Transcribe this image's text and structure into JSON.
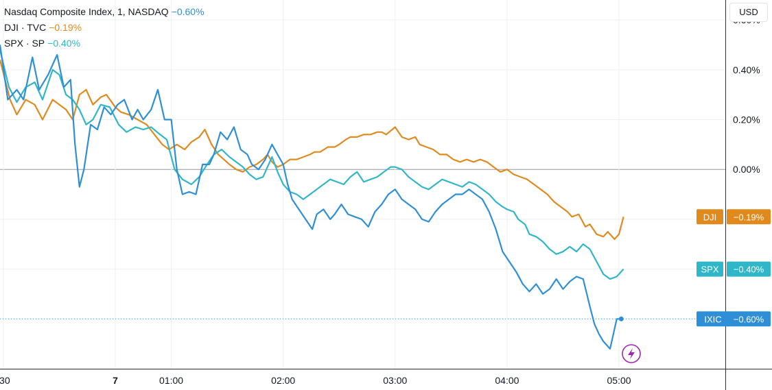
{
  "legend": [
    {
      "symbol": "Nasdaq Composite Index, 1, NASDAQ",
      "change": "−0.60%",
      "color": "#2e8fd6"
    },
    {
      "symbol": "DJI · TVC",
      "change": "−0.19%",
      "color": "#e08a1e"
    },
    {
      "symbol": "SPX · SP",
      "change": "−0.40%",
      "color": "#2fb6c9"
    }
  ],
  "currency": "USD",
  "chart_data": {
    "type": "line",
    "x_tick_labels": [
      ":30",
      "7",
      "01:00",
      "02:00",
      "03:00",
      "04:00",
      "05:00"
    ],
    "x_ticks_hours": [
      -1.5,
      -0.5,
      0,
      1,
      2,
      3,
      4
    ],
    "x_range_hours": [
      -1.53,
      4.95
    ],
    "y_tick_labels": [
      "0.60%",
      "0.40%",
      "0.20%",
      "0.00%"
    ],
    "y_ticks": [
      0.6,
      0.4,
      0.2,
      0.0
    ],
    "ylim": [
      -0.8,
      0.68
    ],
    "grid": true,
    "series": [
      {
        "name": "DJI",
        "tag": "DJI",
        "tag_value": "−0.19%",
        "last": -0.19,
        "color": "#e08a1e",
        "points": [
          [
            -1.53,
            0.44
          ],
          [
            -1.44,
            0.28
          ],
          [
            -1.38,
            0.22
          ],
          [
            -1.3,
            0.28
          ],
          [
            -1.22,
            0.26
          ],
          [
            -1.15,
            0.2
          ],
          [
            -1.06,
            0.28
          ],
          [
            -1.0,
            0.26
          ],
          [
            -0.94,
            0.24
          ],
          [
            -0.88,
            0.2
          ],
          [
            -0.82,
            0.3
          ],
          [
            -0.76,
            0.32
          ],
          [
            -0.7,
            0.26
          ],
          [
            -0.63,
            0.29
          ],
          [
            -0.58,
            0.3
          ],
          [
            -0.5,
            0.25
          ],
          [
            -0.45,
            0.23
          ],
          [
            -0.38,
            0.22
          ],
          [
            -0.3,
            0.2
          ],
          [
            -0.22,
            0.18
          ],
          [
            -0.15,
            0.14
          ],
          [
            -0.08,
            0.1
          ],
          [
            -0.02,
            0.08
          ],
          [
            0.05,
            0.1
          ],
          [
            0.12,
            0.08
          ],
          [
            0.18,
            0.11
          ],
          [
            0.25,
            0.13
          ],
          [
            0.3,
            0.16
          ],
          [
            0.36,
            0.1
          ],
          [
            0.42,
            0.06
          ],
          [
            0.47,
            0.04
          ],
          [
            0.52,
            0.02
          ],
          [
            0.58,
            0.0
          ],
          [
            0.64,
            -0.01
          ],
          [
            0.7,
            0.01
          ],
          [
            0.76,
            0.02
          ],
          [
            0.82,
            0.04
          ],
          [
            0.86,
            0.06
          ],
          [
            0.9,
            0.03
          ],
          [
            0.95,
            0.01
          ],
          [
            1.0,
            0.02
          ],
          [
            1.06,
            0.04
          ],
          [
            1.12,
            0.04
          ],
          [
            1.18,
            0.05
          ],
          [
            1.24,
            0.06
          ],
          [
            1.28,
            0.07
          ],
          [
            1.33,
            0.07
          ],
          [
            1.4,
            0.09
          ],
          [
            1.46,
            0.09
          ],
          [
            1.5,
            0.1
          ],
          [
            1.56,
            0.12
          ],
          [
            1.6,
            0.13
          ],
          [
            1.66,
            0.13
          ],
          [
            1.72,
            0.14
          ],
          [
            1.78,
            0.14
          ],
          [
            1.84,
            0.15
          ],
          [
            1.88,
            0.15
          ],
          [
            1.92,
            0.14
          ],
          [
            2.0,
            0.17
          ],
          [
            2.06,
            0.13
          ],
          [
            2.12,
            0.12
          ],
          [
            2.18,
            0.13
          ],
          [
            2.22,
            0.1
          ],
          [
            2.28,
            0.09
          ],
          [
            2.34,
            0.08
          ],
          [
            2.4,
            0.06
          ],
          [
            2.46,
            0.06
          ],
          [
            2.52,
            0.04
          ],
          [
            2.58,
            0.03
          ],
          [
            2.64,
            0.04
          ],
          [
            2.7,
            0.03
          ],
          [
            2.76,
            0.04
          ],
          [
            2.82,
            0.03
          ],
          [
            2.88,
            0.01
          ],
          [
            2.94,
            -0.01
          ],
          [
            3.0,
            0.0
          ],
          [
            3.06,
            -0.02
          ],
          [
            3.12,
            -0.03
          ],
          [
            3.18,
            -0.04
          ],
          [
            3.24,
            -0.06
          ],
          [
            3.3,
            -0.08
          ],
          [
            3.36,
            -0.1
          ],
          [
            3.42,
            -0.13
          ],
          [
            3.48,
            -0.15
          ],
          [
            3.54,
            -0.17
          ],
          [
            3.58,
            -0.19
          ],
          [
            3.64,
            -0.18
          ],
          [
            3.7,
            -0.23
          ],
          [
            3.74,
            -0.22
          ],
          [
            3.8,
            -0.26
          ],
          [
            3.86,
            -0.27
          ],
          [
            3.9,
            -0.25
          ],
          [
            3.96,
            -0.28
          ],
          [
            4.0,
            -0.26
          ],
          [
            4.04,
            -0.19
          ]
        ]
      },
      {
        "name": "SPX",
        "tag": "SPX",
        "tag_value": "−0.40%",
        "last": -0.4,
        "color": "#2fb6c9",
        "points": [
          [
            -1.53,
            0.48
          ],
          [
            -1.45,
            0.33
          ],
          [
            -1.38,
            0.27
          ],
          [
            -1.3,
            0.33
          ],
          [
            -1.22,
            0.35
          ],
          [
            -1.15,
            0.28
          ],
          [
            -1.06,
            0.4
          ],
          [
            -1.0,
            0.38
          ],
          [
            -0.94,
            0.3
          ],
          [
            -0.88,
            0.28
          ],
          [
            -0.82,
            0.24
          ],
          [
            -0.76,
            0.18
          ],
          [
            -0.7,
            0.2
          ],
          [
            -0.63,
            0.26
          ],
          [
            -0.55,
            0.25
          ],
          [
            -0.47,
            0.18
          ],
          [
            -0.4,
            0.15
          ],
          [
            -0.32,
            0.17
          ],
          [
            -0.25,
            0.16
          ],
          [
            -0.18,
            0.17
          ],
          [
            -0.1,
            0.14
          ],
          [
            -0.04,
            0.12
          ],
          [
            0.03,
            0.0
          ],
          [
            0.1,
            -0.04
          ],
          [
            0.18,
            -0.06
          ],
          [
            0.25,
            -0.03
          ],
          [
            0.32,
            0.02
          ],
          [
            0.38,
            0.06
          ],
          [
            0.45,
            0.08
          ],
          [
            0.52,
            0.05
          ],
          [
            0.58,
            0.03
          ],
          [
            0.64,
            0.01
          ],
          [
            0.7,
            -0.02
          ],
          [
            0.76,
            -0.04
          ],
          [
            0.82,
            -0.03
          ],
          [
            0.9,
            0.05
          ],
          [
            0.95,
            -0.01
          ],
          [
            1.0,
            -0.06
          ],
          [
            1.06,
            -0.09
          ],
          [
            1.12,
            -0.1
          ],
          [
            1.18,
            -0.12
          ],
          [
            1.24,
            -0.1
          ],
          [
            1.3,
            -0.08
          ],
          [
            1.36,
            -0.06
          ],
          [
            1.42,
            -0.04
          ],
          [
            1.48,
            -0.05
          ],
          [
            1.54,
            -0.06
          ],
          [
            1.6,
            -0.03
          ],
          [
            1.66,
            -0.01
          ],
          [
            1.72,
            -0.05
          ],
          [
            1.78,
            -0.04
          ],
          [
            1.84,
            -0.03
          ],
          [
            1.9,
            -0.01
          ],
          [
            1.96,
            0.01
          ],
          [
            2.0,
            0.01
          ],
          [
            2.06,
            0.0
          ],
          [
            2.12,
            -0.03
          ],
          [
            2.18,
            -0.05
          ],
          [
            2.24,
            -0.07
          ],
          [
            2.3,
            -0.08
          ],
          [
            2.36,
            -0.06
          ],
          [
            2.42,
            -0.04
          ],
          [
            2.48,
            -0.05
          ],
          [
            2.54,
            -0.06
          ],
          [
            2.6,
            -0.07
          ],
          [
            2.66,
            -0.05
          ],
          [
            2.72,
            -0.06
          ],
          [
            2.78,
            -0.08
          ],
          [
            2.84,
            -0.1
          ],
          [
            2.9,
            -0.13
          ],
          [
            2.96,
            -0.15
          ],
          [
            3.0,
            -0.16
          ],
          [
            3.06,
            -0.17
          ],
          [
            3.1,
            -0.2
          ],
          [
            3.16,
            -0.22
          ],
          [
            3.2,
            -0.26
          ],
          [
            3.26,
            -0.27
          ],
          [
            3.32,
            -0.29
          ],
          [
            3.38,
            -0.32
          ],
          [
            3.44,
            -0.34
          ],
          [
            3.5,
            -0.33
          ],
          [
            3.56,
            -0.31
          ],
          [
            3.62,
            -0.33
          ],
          [
            3.68,
            -0.3
          ],
          [
            3.74,
            -0.32
          ],
          [
            3.8,
            -0.37
          ],
          [
            3.86,
            -0.42
          ],
          [
            3.92,
            -0.44
          ],
          [
            3.98,
            -0.43
          ],
          [
            4.04,
            -0.4
          ]
        ]
      },
      {
        "name": "IXIC",
        "tag": "IXIC",
        "tag_value": "−0.60%",
        "last": -0.6,
        "color": "#2e8fd6",
        "points": [
          [
            -1.53,
            0.5
          ],
          [
            -1.46,
            0.28
          ],
          [
            -1.38,
            0.32
          ],
          [
            -1.32,
            0.28
          ],
          [
            -1.24,
            0.45
          ],
          [
            -1.18,
            0.32
          ],
          [
            -1.1,
            0.38
          ],
          [
            -1.02,
            0.46
          ],
          [
            -0.96,
            0.33
          ],
          [
            -0.9,
            0.36
          ],
          [
            -0.86,
            0.1
          ],
          [
            -0.82,
            -0.07
          ],
          [
            -0.78,
            0.0
          ],
          [
            -0.72,
            0.18
          ],
          [
            -0.66,
            0.16
          ],
          [
            -0.6,
            0.25
          ],
          [
            -0.54,
            0.22
          ],
          [
            -0.48,
            0.26
          ],
          [
            -0.42,
            0.28
          ],
          [
            -0.35,
            0.2
          ],
          [
            -0.3,
            0.24
          ],
          [
            -0.25,
            0.2
          ],
          [
            -0.18,
            0.24
          ],
          [
            -0.12,
            0.32
          ],
          [
            -0.06,
            0.2
          ],
          [
            0.0,
            0.2
          ],
          [
            0.05,
            0.0
          ],
          [
            0.1,
            -0.1
          ],
          [
            0.16,
            -0.09
          ],
          [
            0.22,
            -0.1
          ],
          [
            0.28,
            0.02
          ],
          [
            0.34,
            0.02
          ],
          [
            0.38,
            0.06
          ],
          [
            0.44,
            0.15
          ],
          [
            0.5,
            0.12
          ],
          [
            0.56,
            0.17
          ],
          [
            0.62,
            0.08
          ],
          [
            0.68,
            0.06
          ],
          [
            0.72,
            0.02
          ],
          [
            0.78,
            0.0
          ],
          [
            0.84,
            0.04
          ],
          [
            0.9,
            0.1
          ],
          [
            0.95,
            0.06
          ],
          [
            1.0,
            0.02
          ],
          [
            1.04,
            -0.06
          ],
          [
            1.08,
            -0.12
          ],
          [
            1.14,
            -0.16
          ],
          [
            1.2,
            -0.2
          ],
          [
            1.26,
            -0.24
          ],
          [
            1.3,
            -0.18
          ],
          [
            1.36,
            -0.16
          ],
          [
            1.42,
            -0.2
          ],
          [
            1.46,
            -0.18
          ],
          [
            1.52,
            -0.14
          ],
          [
            1.58,
            -0.18
          ],
          [
            1.64,
            -0.19
          ],
          [
            1.7,
            -0.2
          ],
          [
            1.76,
            -0.23
          ],
          [
            1.82,
            -0.17
          ],
          [
            1.88,
            -0.14
          ],
          [
            1.94,
            -0.1
          ],
          [
            2.0,
            -0.08
          ],
          [
            2.06,
            -0.12
          ],
          [
            2.12,
            -0.14
          ],
          [
            2.18,
            -0.16
          ],
          [
            2.24,
            -0.2
          ],
          [
            2.3,
            -0.21
          ],
          [
            2.36,
            -0.17
          ],
          [
            2.42,
            -0.14
          ],
          [
            2.48,
            -0.12
          ],
          [
            2.54,
            -0.1
          ],
          [
            2.6,
            -0.1
          ],
          [
            2.66,
            -0.08
          ],
          [
            2.72,
            -0.1
          ],
          [
            2.78,
            -0.12
          ],
          [
            2.84,
            -0.17
          ],
          [
            2.9,
            -0.24
          ],
          [
            2.96,
            -0.33
          ],
          [
            3.02,
            -0.37
          ],
          [
            3.08,
            -0.41
          ],
          [
            3.14,
            -0.46
          ],
          [
            3.2,
            -0.49
          ],
          [
            3.26,
            -0.46
          ],
          [
            3.32,
            -0.5
          ],
          [
            3.38,
            -0.48
          ],
          [
            3.44,
            -0.44
          ],
          [
            3.5,
            -0.48
          ],
          [
            3.56,
            -0.45
          ],
          [
            3.62,
            -0.43
          ],
          [
            3.68,
            -0.44
          ],
          [
            3.74,
            -0.55
          ],
          [
            3.78,
            -0.62
          ],
          [
            3.82,
            -0.66
          ],
          [
            3.86,
            -0.69
          ],
          [
            3.92,
            -0.72
          ],
          [
            3.98,
            -0.6
          ],
          [
            4.02,
            -0.6
          ]
        ]
      }
    ]
  }
}
